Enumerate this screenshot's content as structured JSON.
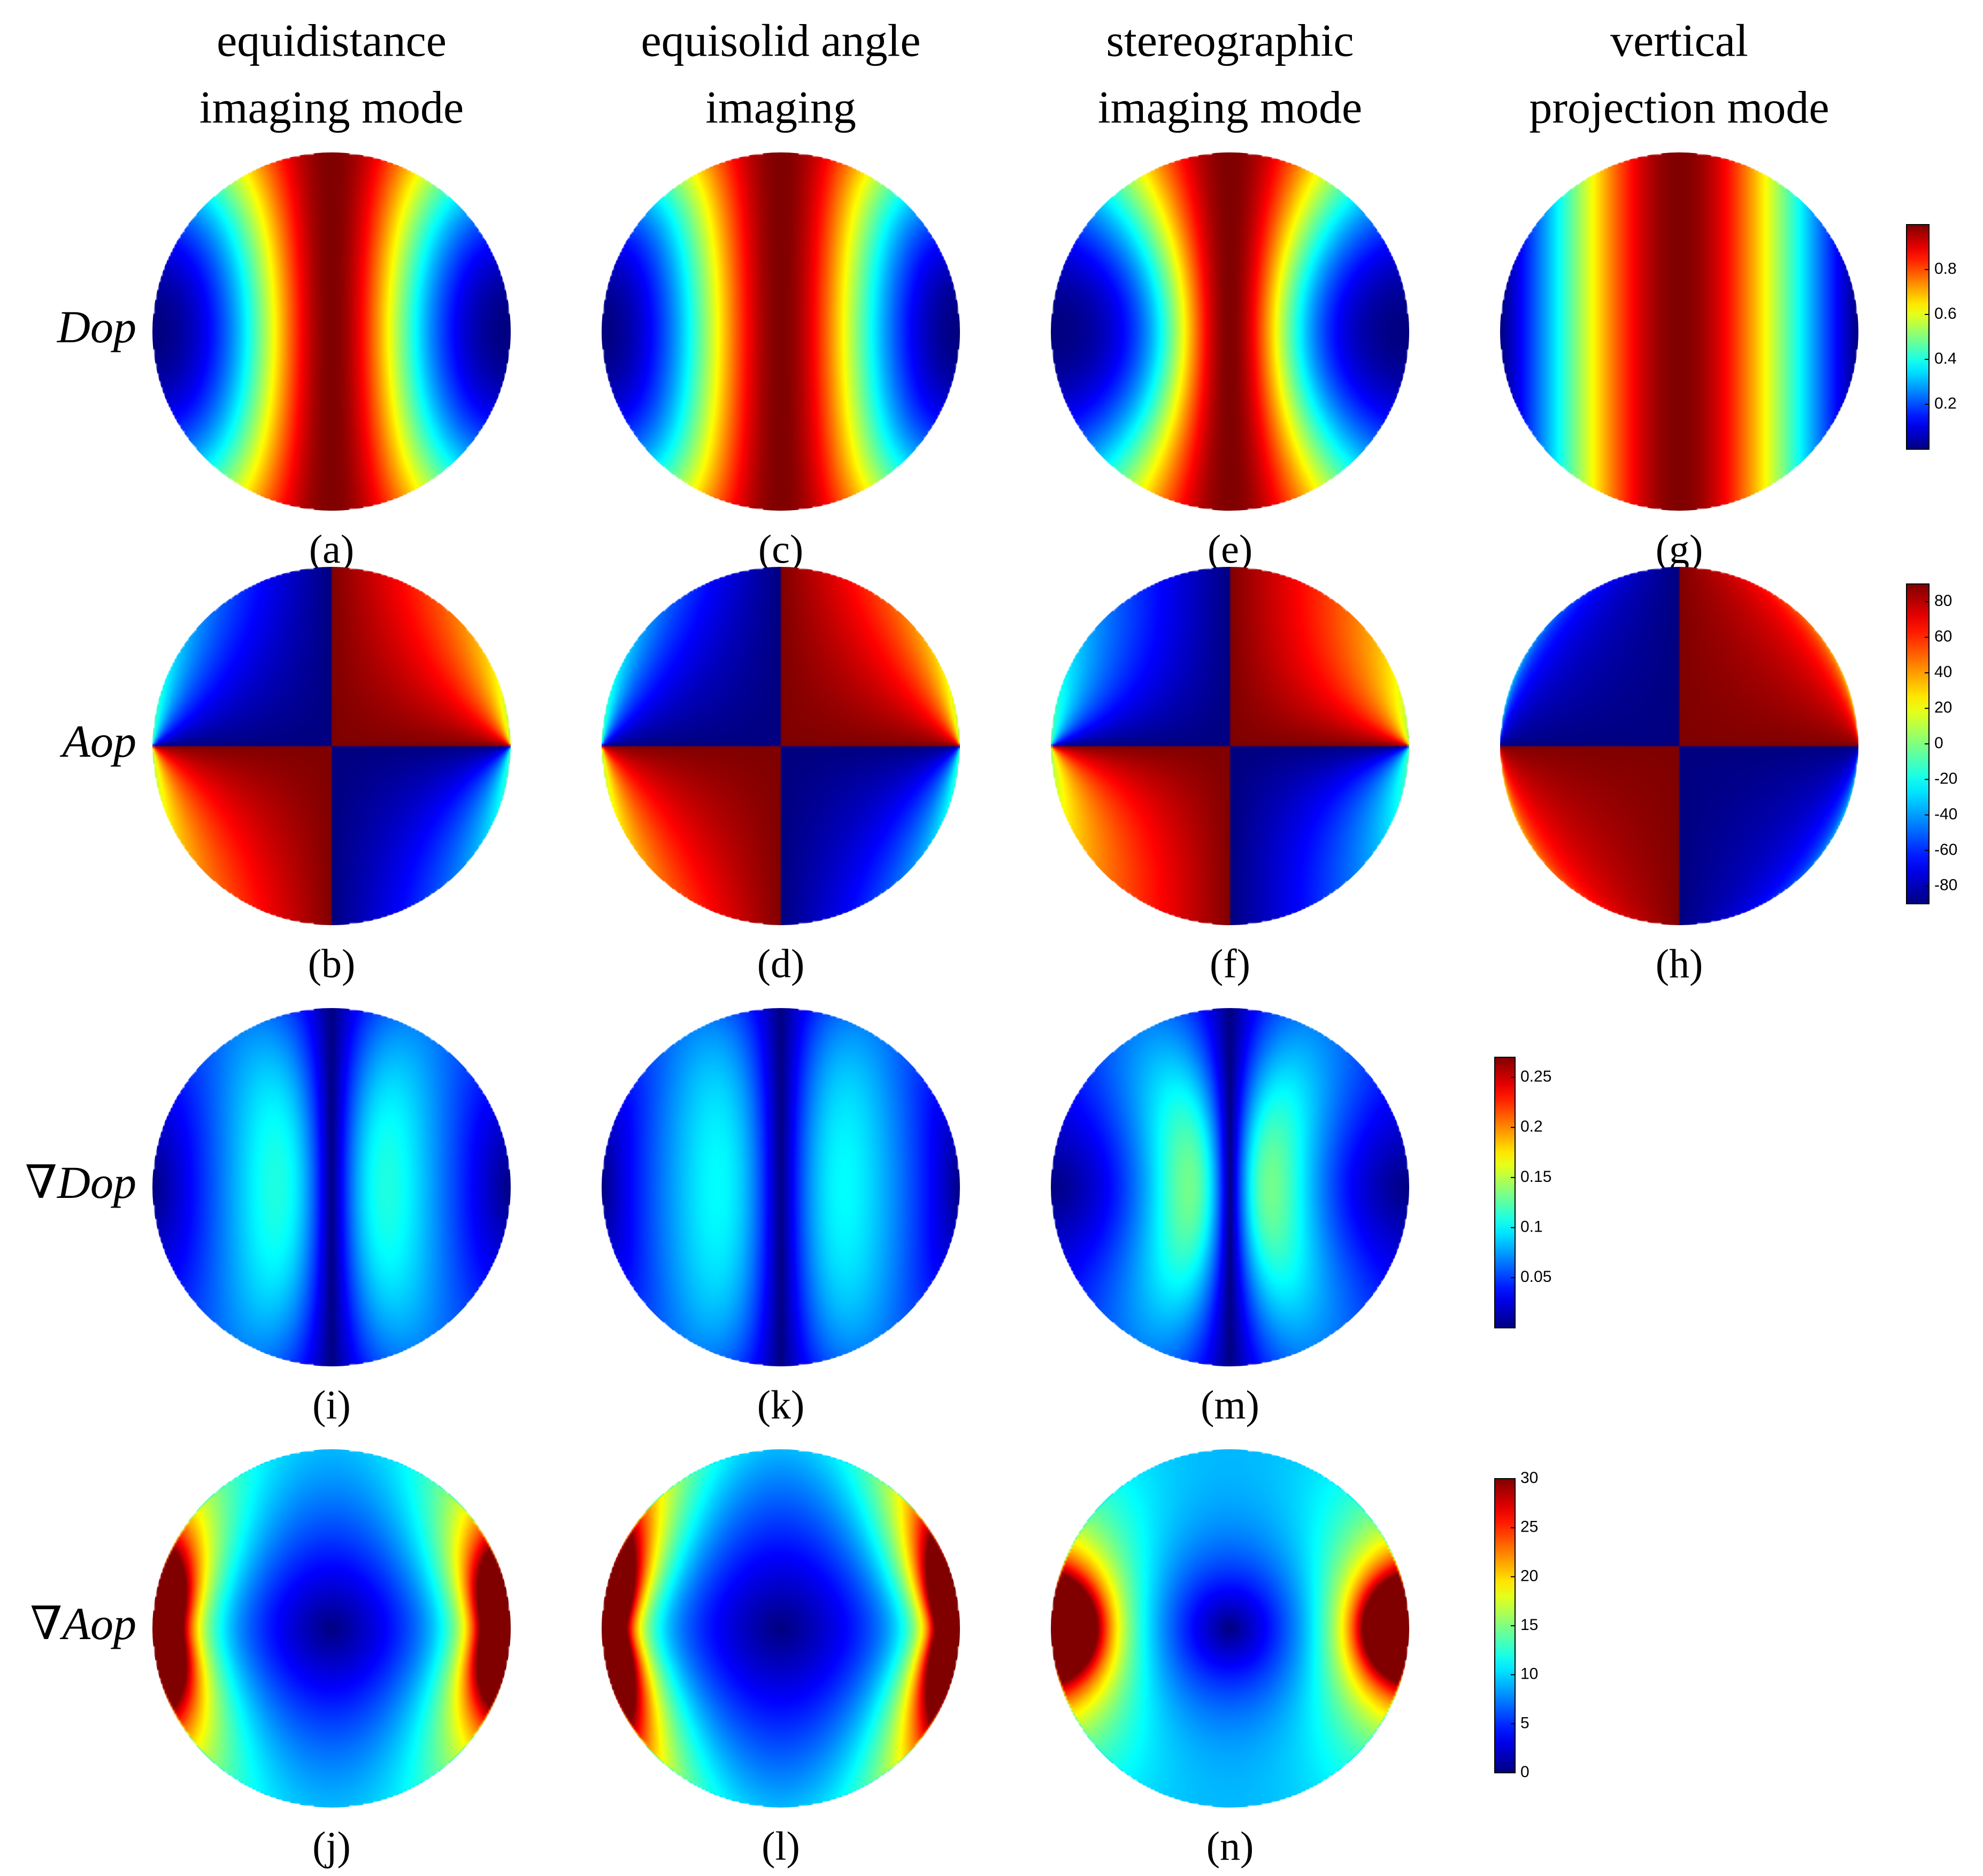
{
  "chart_data": {
    "type": "heatmap",
    "grid": false,
    "columns": [
      {
        "key": "equidistance",
        "title_lines": [
          "equidistance",
          "imaging mode"
        ]
      },
      {
        "key": "equisolid",
        "title_lines": [
          "equisolid angle",
          "imaging"
        ]
      },
      {
        "key": "stereographic",
        "title_lines": [
          "stereographic",
          "imaging mode"
        ]
      },
      {
        "key": "vertical",
        "title_lines": [
          "vertical",
          "projection mode"
        ]
      }
    ],
    "rows": [
      {
        "key": "dop",
        "nabla": "",
        "label": "Dop"
      },
      {
        "key": "aop",
        "nabla": "",
        "label": "Aop"
      },
      {
        "key": "gdop",
        "nabla": "∇",
        "label": "Dop"
      },
      {
        "key": "gaop",
        "nabla": "∇",
        "label": "Aop"
      }
    ],
    "panels": [
      {
        "row": "dop",
        "column": "equidistance",
        "label": "(a)"
      },
      {
        "row": "dop",
        "column": "equisolid",
        "label": "(c)"
      },
      {
        "row": "dop",
        "column": "stereographic",
        "label": "(e)"
      },
      {
        "row": "dop",
        "column": "vertical",
        "label": "(g)"
      },
      {
        "row": "aop",
        "column": "equidistance",
        "label": "(b)"
      },
      {
        "row": "aop",
        "column": "equisolid",
        "label": "(d)"
      },
      {
        "row": "aop",
        "column": "stereographic",
        "label": "(f)"
      },
      {
        "row": "aop",
        "column": "vertical",
        "label": "(h)"
      },
      {
        "row": "gdop",
        "column": "equidistance",
        "label": "(i)"
      },
      {
        "row": "gdop",
        "column": "equisolid",
        "label": "(k)"
      },
      {
        "row": "gdop",
        "column": "stereographic",
        "label": "(m)"
      },
      {
        "row": "gaop",
        "column": "equidistance",
        "label": "(j)"
      },
      {
        "row": "gaop",
        "column": "equisolid",
        "label": "(l)"
      },
      {
        "row": "gaop",
        "column": "stereographic",
        "label": "(n)"
      }
    ],
    "colorbars": [
      {
        "row": "dop",
        "range": [
          0,
          1
        ],
        "ticks": [
          0.2,
          0.4,
          0.6,
          0.8
        ],
        "tick_labels": [
          "0.2",
          "0.4",
          "0.6",
          "0.8"
        ]
      },
      {
        "row": "aop",
        "range": [
          -90,
          90
        ],
        "ticks": [
          -80,
          -60,
          -40,
          -20,
          0,
          20,
          40,
          60,
          80
        ],
        "tick_labels": [
          "-80",
          "-60",
          "-40",
          "-20",
          "0",
          "20",
          "40",
          "60",
          "80"
        ]
      },
      {
        "row": "gdop",
        "range": [
          0,
          0.27
        ],
        "ticks": [
          0.05,
          0.1,
          0.15,
          0.2,
          0.25
        ],
        "tick_labels": [
          "0.05",
          "0.1",
          "0.15",
          "0.2",
          "0.25"
        ]
      },
      {
        "row": "gaop",
        "range": [
          0,
          30
        ],
        "ticks": [
          0,
          5,
          10,
          15,
          20,
          25,
          30
        ],
        "tick_labels": [
          "0",
          "5",
          "10",
          "15",
          "20",
          "25",
          "30"
        ]
      }
    ],
    "colormap": "jet"
  }
}
